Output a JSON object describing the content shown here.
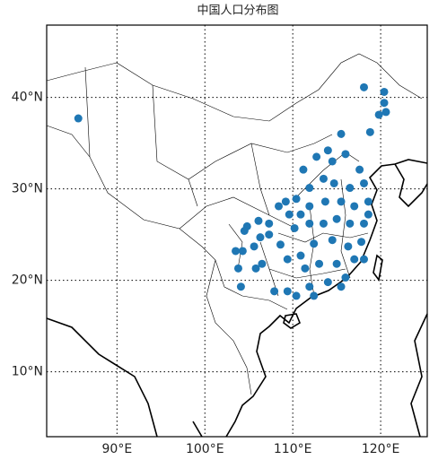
{
  "chart_data": {
    "type": "scatter",
    "title": "中国人口分布图",
    "color": "#1f77b4",
    "grid": true,
    "xlim": [
      82,
      125.3
    ],
    "ylim": [
      2.9,
      47.9
    ],
    "xticks": [
      {
        "value": 90,
        "label": "90°E"
      },
      {
        "value": 100,
        "label": "100°E"
      },
      {
        "value": 110,
        "label": "110°E"
      },
      {
        "value": 120,
        "label": "120°E"
      }
    ],
    "yticks": [
      {
        "value": 10,
        "label": "10°N"
      },
      {
        "value": 20,
        "label": "20°N"
      },
      {
        "value": 30,
        "label": "30°N"
      },
      {
        "value": 40,
        "label": "40°N"
      }
    ],
    "x": [
      85.6,
      118.1,
      120.4,
      120.4,
      119.8,
      120.6,
      118.8,
      115.5,
      114.0,
      112.7,
      111.2,
      114.5,
      116.0,
      117.6,
      113.5,
      111.9,
      114.7,
      116.5,
      118.1,
      118.6,
      117.0,
      115.5,
      113.7,
      111.9,
      110.4,
      109.2,
      107.3,
      106.1,
      104.8,
      104.5,
      106.3,
      107.3,
      104.3,
      105.6,
      103.5,
      103.8,
      105.8,
      106.5,
      108.6,
      110.2,
      111.9,
      113.5,
      115.0,
      116.5,
      118.1,
      118.6,
      117.8,
      116.3,
      114.5,
      112.4,
      110.9,
      109.4,
      111.4,
      113.0,
      115.0,
      117.0,
      116.0,
      114.0,
      111.9,
      110.4,
      109.4,
      107.9,
      112.4,
      115.5,
      104.1,
      108.4,
      109.6,
      110.9,
      118.1
    ],
    "values": [
      37.7,
      41.1,
      40.6,
      39.4,
      38.1,
      38.4,
      36.2,
      36.0,
      34.2,
      33.5,
      32.1,
      33.0,
      33.8,
      32.1,
      31.1,
      30.1,
      30.6,
      30.1,
      30.6,
      28.6,
      28.1,
      28.6,
      28.6,
      28.1,
      28.9,
      28.6,
      26.2,
      26.5,
      25.9,
      25.4,
      24.7,
      25.0,
      23.2,
      23.7,
      23.2,
      21.3,
      21.3,
      21.8,
      23.9,
      25.7,
      26.2,
      26.2,
      26.7,
      26.2,
      26.2,
      27.2,
      24.2,
      23.7,
      24.4,
      24.0,
      22.7,
      22.3,
      21.3,
      21.8,
      21.8,
      22.3,
      20.3,
      19.8,
      19.3,
      18.3,
      18.8,
      18.8,
      18.3,
      19.3,
      19.3,
      28.1,
      27.2,
      27.2,
      22.3
    ]
  }
}
